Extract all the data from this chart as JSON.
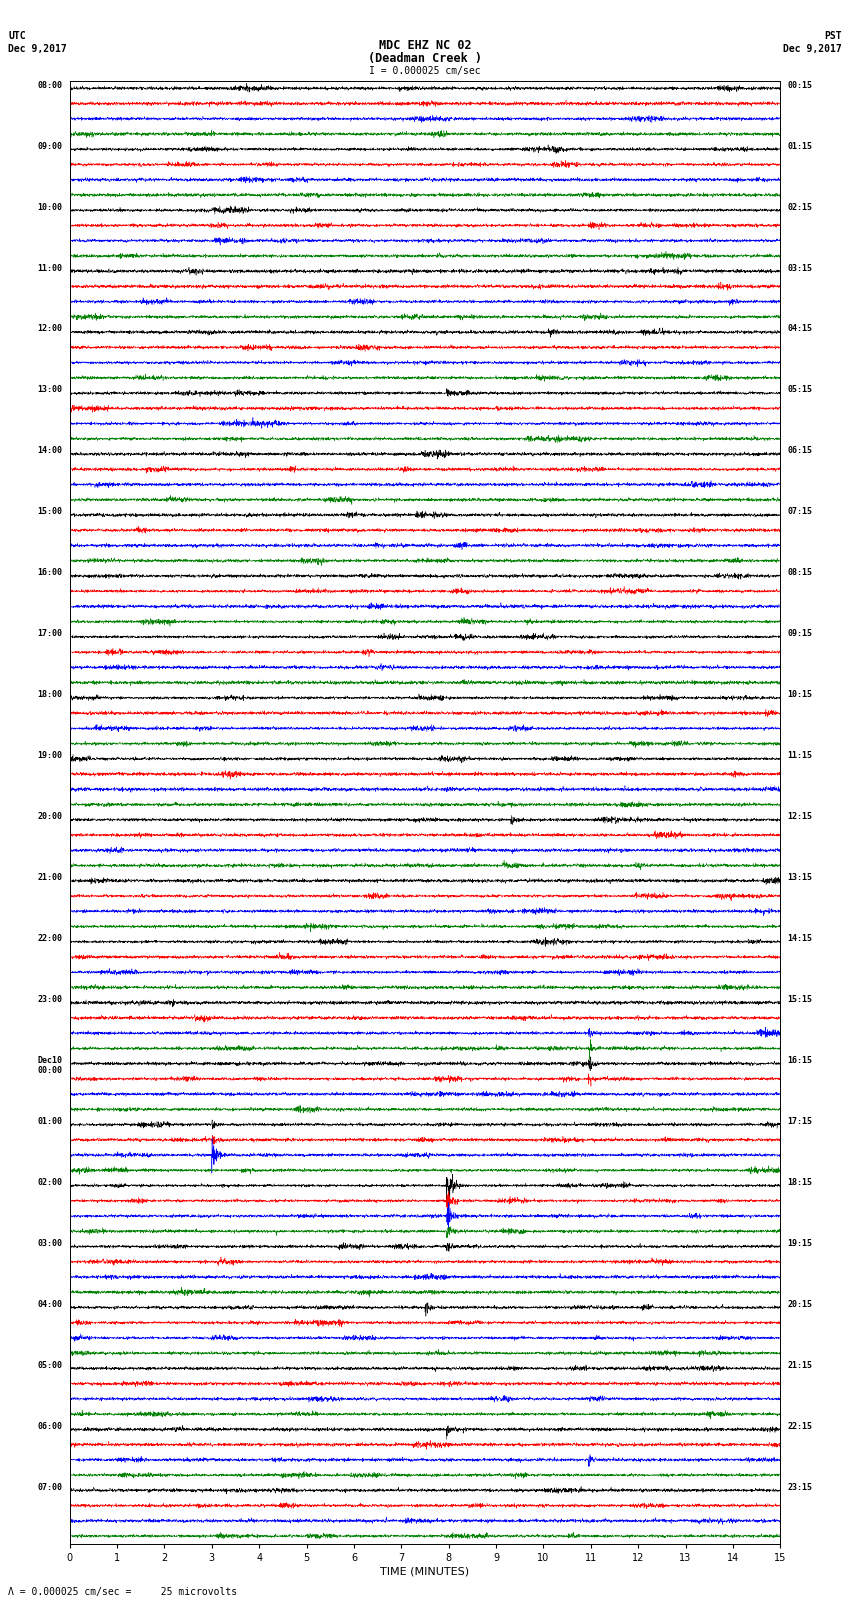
{
  "title_line1": "MDC EHZ NC 02",
  "title_line2": "(Deadman Creek )",
  "scale_text": "I = 0.000025 cm/sec",
  "scale_label": "= 0.000025 cm/sec =     25 microvolts",
  "utc_label": "UTC",
  "pst_label": "PST",
  "date_left": "Dec 9,2017",
  "date_right": "Dec 9,2017",
  "xlabel": "TIME (MINUTES)",
  "left_times": [
    "08:00",
    "09:00",
    "10:00",
    "11:00",
    "12:00",
    "13:00",
    "14:00",
    "15:00",
    "16:00",
    "17:00",
    "18:00",
    "19:00",
    "20:00",
    "21:00",
    "22:00",
    "23:00",
    "Dec10\n00:00",
    "01:00",
    "02:00",
    "03:00",
    "04:00",
    "05:00",
    "06:00",
    "07:00"
  ],
  "right_times": [
    "00:15",
    "01:15",
    "02:15",
    "03:15",
    "04:15",
    "05:15",
    "06:15",
    "07:15",
    "08:15",
    "09:15",
    "10:15",
    "11:15",
    "12:15",
    "13:15",
    "14:15",
    "15:15",
    "16:15",
    "17:15",
    "18:15",
    "19:15",
    "20:15",
    "21:15",
    "22:15",
    "23:15"
  ],
  "colors": [
    "black",
    "red",
    "blue",
    "green"
  ],
  "n_rows": 96,
  "n_cols": 3600,
  "x_min": 0,
  "x_max": 15,
  "noise_amplitude": 0.3,
  "bg_color": "white",
  "seed": 42,
  "spike_events": {
    "20": [
      [
        0.53,
        3.0,
        "black"
      ]
    ],
    "21": [
      [
        0.6,
        2.5,
        "red"
      ]
    ],
    "23": [
      [
        0.6,
        2.0,
        "blue"
      ]
    ],
    "37": [
      [
        0.73,
        3.5,
        "black"
      ]
    ],
    "48": [
      [
        0.62,
        3.0,
        "red"
      ]
    ],
    "57": [
      [
        0.58,
        2.5,
        "black"
      ]
    ],
    "62": [
      [
        0.73,
        4.0,
        "blue"
      ]
    ],
    "63": [
      [
        0.73,
        5.0,
        "green"
      ]
    ],
    "64": [
      [
        0.73,
        6.0,
        "black"
      ]
    ],
    "65": [
      [
        0.73,
        4.0,
        "red"
      ]
    ],
    "68": [
      [
        0.2,
        4.0,
        "blue"
      ]
    ],
    "69": [
      [
        0.2,
        3.5,
        "green"
      ]
    ],
    "70": [
      [
        0.2,
        12.0,
        "black"
      ]
    ],
    "72": [
      [
        0.53,
        18.0,
        "green"
      ]
    ],
    "73": [
      [
        0.53,
        14.0,
        "black"
      ]
    ],
    "74": [
      [
        0.53,
        10.0,
        "red"
      ]
    ],
    "75": [
      [
        0.53,
        8.0,
        "blue"
      ]
    ],
    "76": [
      [
        0.53,
        6.0,
        "green"
      ]
    ],
    "80": [
      [
        0.5,
        5.0,
        "black"
      ]
    ],
    "88": [
      [
        0.53,
        3.0,
        "blue"
      ]
    ],
    "90": [
      [
        0.73,
        4.0,
        "blue"
      ]
    ]
  }
}
